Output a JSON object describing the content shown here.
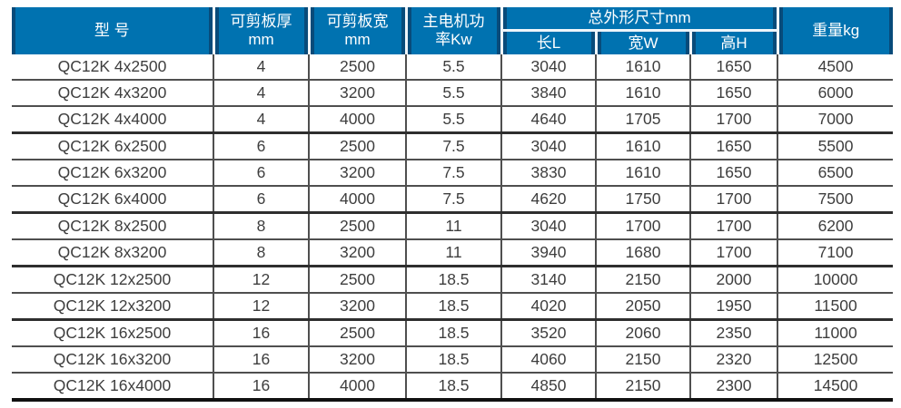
{
  "colors": {
    "header_bg": "#0072b0",
    "header_text": "#ffffff",
    "header_separator": "#eef5fa",
    "grid_line": "#4f4f4f",
    "data_text": "#3e3e3e"
  },
  "table": {
    "header": {
      "model": "型 号",
      "thickness_l1": "可剪板厚",
      "thickness_l2": "mm",
      "width_l1": "可剪板宽",
      "width_l2": "mm",
      "power_l1": "主电机功",
      "power_l2": "率Kw",
      "dims_group": "总外形尺寸mm",
      "dims_sub": [
        "长L",
        "宽W",
        "高H"
      ],
      "weight": "重量kg"
    },
    "cell_names": [
      "model",
      "thickness-mm",
      "width-mm",
      "power-kw",
      "length-l",
      "width-w",
      "height-h",
      "weight-kg"
    ],
    "group_end_rows": [
      2,
      5,
      7,
      9
    ],
    "rows": [
      [
        "QC12K 4x2500",
        "4",
        "2500",
        "5.5",
        "3040",
        "1610",
        "1650",
        "4500"
      ],
      [
        "QC12K 4x3200",
        "4",
        "3200",
        "5.5",
        "3840",
        "1610",
        "1650",
        "6000"
      ],
      [
        "QC12K 4x4000",
        "4",
        "4000",
        "5.5",
        "4640",
        "1705",
        "1700",
        "7000"
      ],
      [
        "QC12K 6x2500",
        "6",
        "2500",
        "7.5",
        "3040",
        "1610",
        "1650",
        "5500"
      ],
      [
        "QC12K 6x3200",
        "6",
        "3200",
        "7.5",
        "3830",
        "1610",
        "1650",
        "6500"
      ],
      [
        "QC12K 6x4000",
        "6",
        "4000",
        "7.5",
        "4620",
        "1750",
        "1700",
        "7500"
      ],
      [
        "QC12K 8x2500",
        "8",
        "2500",
        "11",
        "3040",
        "1700",
        "1700",
        "6200"
      ],
      [
        "QC12K 8x3200",
        "8",
        "3200",
        "11",
        "3940",
        "1680",
        "1700",
        "7100"
      ],
      [
        "QC12K 12x2500",
        "12",
        "2500",
        "18.5",
        "3140",
        "2150",
        "2000",
        "10000"
      ],
      [
        "QC12K 12x3200",
        "12",
        "3200",
        "18.5",
        "4020",
        "2050",
        "1950",
        "11500"
      ],
      [
        "QC12K 16x2500",
        "16",
        "2500",
        "18.5",
        "3520",
        "2060",
        "2350",
        "11000"
      ],
      [
        "QC12K 16x3200",
        "16",
        "3200",
        "18.5",
        "4060",
        "2150",
        "2320",
        "12500"
      ],
      [
        "QC12K 16x4000",
        "16",
        "4000",
        "18.5",
        "4850",
        "2150",
        "2300",
        "14500"
      ]
    ]
  }
}
